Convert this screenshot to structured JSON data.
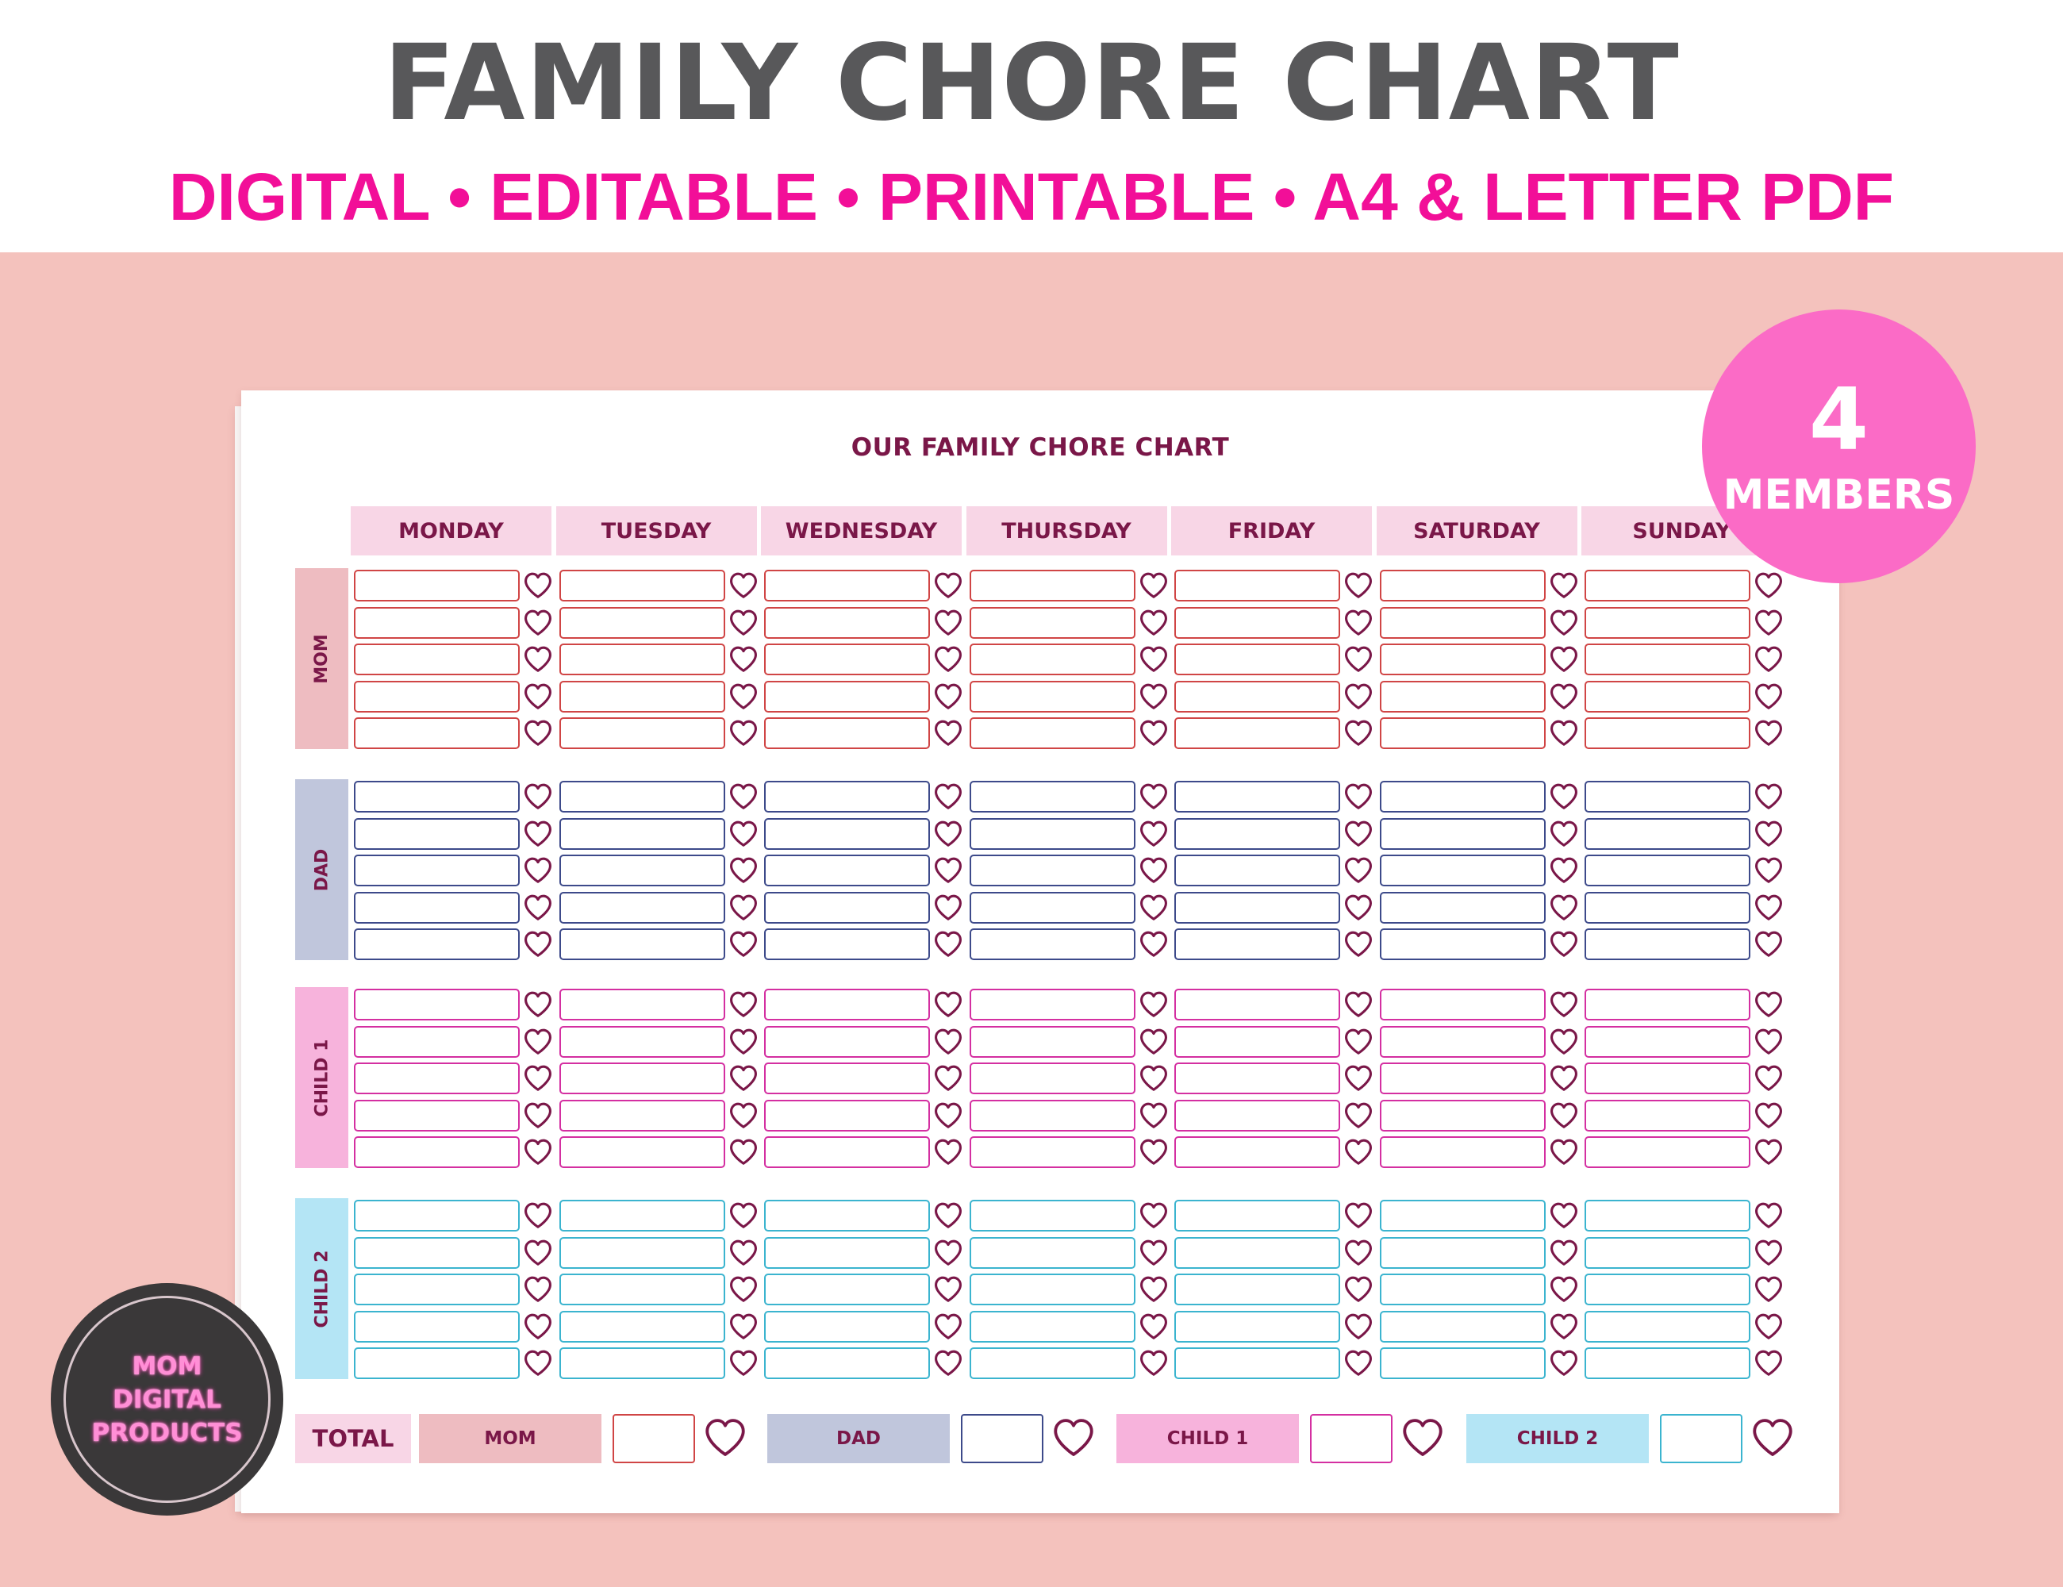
{
  "header": {
    "title": "FAMILY CHORE CHART",
    "subtitle": "DIGITAL • EDITABLE • PRINTABLE • A4 & LETTER PDF"
  },
  "badge": {
    "number": "4",
    "label": "MEMBERS"
  },
  "chart": {
    "title": "OUR FAMILY CHORE CHART",
    "days": [
      "MONDAY",
      "TUESDAY",
      "WEDNESDAY",
      "THURSDAY",
      "FRIDAY",
      "SATURDAY",
      "SUNDAY"
    ],
    "members": [
      {
        "name": "MOM",
        "label_color": "#eebcc1",
        "slot_border": "#d04545"
      },
      {
        "name": "DAD",
        "label_color": "#c0c6dc",
        "slot_border": "#3d4a8a"
      },
      {
        "name": "CHILD 1",
        "label_color": "#f7b3dc",
        "slot_border": "#d42fa1"
      },
      {
        "name": "CHILD 2",
        "label_color": "#b4e5f5",
        "slot_border": "#3bb4cf"
      }
    ],
    "chores_per_day": 5,
    "heart_color": "#7a1748",
    "total": {
      "label": "TOTAL",
      "items": [
        {
          "name": "MOM",
          "color": "#eebcc1",
          "border": "#d04545"
        },
        {
          "name": "DAD",
          "color": "#c0c6dc",
          "border": "#3d4a8a"
        },
        {
          "name": "CHILD 1",
          "color": "#f7b3dc",
          "border": "#d42fa1"
        },
        {
          "name": "CHILD 2",
          "color": "#b4e5f5",
          "border": "#3bb4cf"
        }
      ]
    }
  },
  "logo": {
    "lines": [
      "MOM",
      "DIGITAL",
      "PRODUCTS"
    ]
  }
}
